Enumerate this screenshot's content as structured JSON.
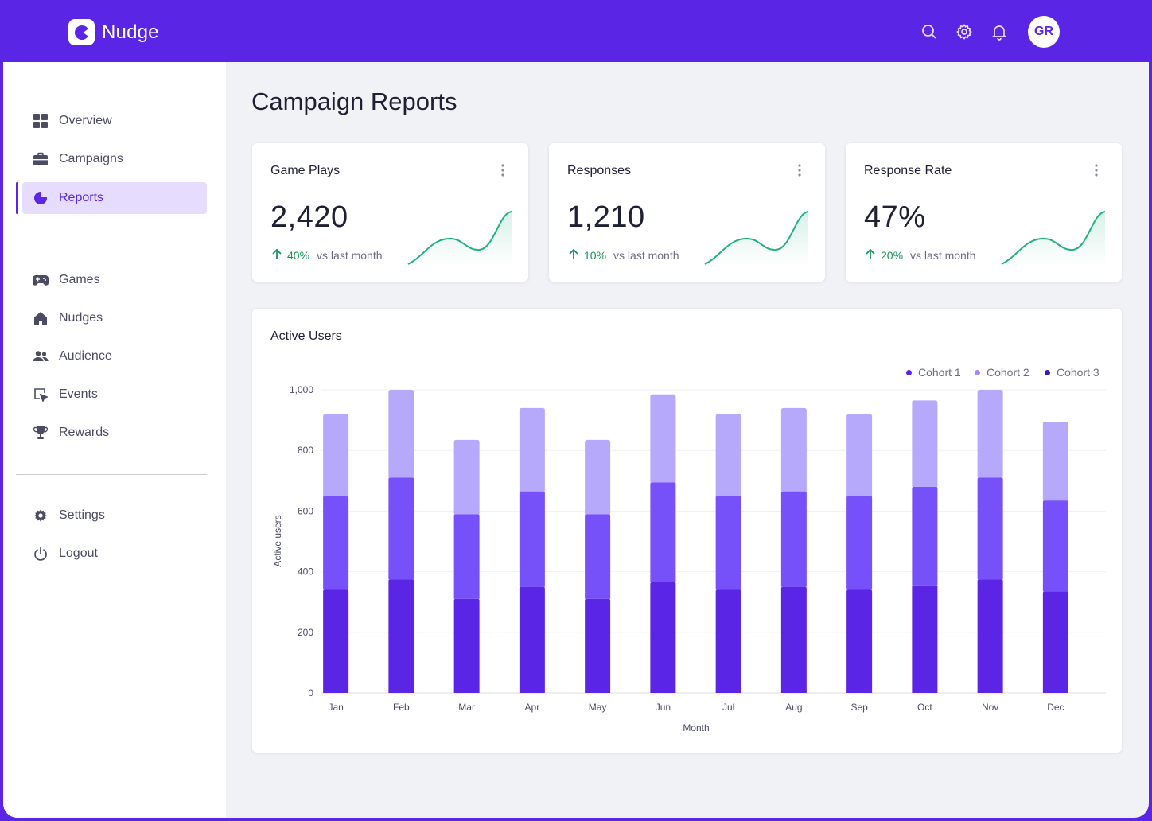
{
  "app": {
    "name": "Nudge",
    "avatar_initials": "GR"
  },
  "colors": {
    "brand": "#5b25e6",
    "positive": "#17935a",
    "sparkline": "#22b07d",
    "cohort1": "#5b25e6",
    "cohort2": "#7651fa",
    "cohort3": "#b6a8fb"
  },
  "header": {
    "icons": [
      "search-icon",
      "gear-icon",
      "bell-icon"
    ]
  },
  "sidebar": {
    "primary": [
      {
        "label": "Overview",
        "icon": "grid-icon"
      },
      {
        "label": "Campaigns",
        "icon": "briefcase-icon"
      },
      {
        "label": "Reports",
        "icon": "pie-chart-icon",
        "active": true
      }
    ],
    "secondary": [
      {
        "label": "Games",
        "icon": "gamepad-icon"
      },
      {
        "label": "Nudges",
        "icon": "home-icon"
      },
      {
        "label": "Audience",
        "icon": "users-icon"
      },
      {
        "label": "Events",
        "icon": "cursor-icon"
      },
      {
        "label": "Rewards",
        "icon": "trophy-icon"
      }
    ],
    "tertiary": [
      {
        "label": "Settings",
        "icon": "gear-icon"
      },
      {
        "label": "Logout",
        "icon": "power-icon"
      }
    ]
  },
  "page": {
    "title": "Campaign Reports"
  },
  "kpis": [
    {
      "title": "Game Plays",
      "value": "2,420",
      "change": "40%",
      "comparison": "vs last month",
      "trend": "up"
    },
    {
      "title": "Responses",
      "value": "1,210",
      "change": "10%",
      "comparison": "vs last month",
      "trend": "up"
    },
    {
      "title": "Response Rate",
      "value": "47%",
      "change": "20%",
      "comparison": "vs last month",
      "trend": "up"
    }
  ],
  "active_users": {
    "title": "Active Users"
  },
  "chart_data": {
    "type": "bar",
    "stacked": true,
    "title": "Active Users",
    "xlabel": "Month",
    "ylabel": "Active users",
    "ylim": [
      0,
      1000
    ],
    "yticks": [
      0,
      200,
      400,
      600,
      800,
      1000
    ],
    "ytick_labels": [
      "0",
      "200",
      "400",
      "600",
      "800",
      "1,000"
    ],
    "categories": [
      "Jan",
      "Feb",
      "Mar",
      "Apr",
      "May",
      "Jun",
      "Jul",
      "Aug",
      "Sep",
      "Oct",
      "Nov",
      "Dec"
    ],
    "series": [
      {
        "name": "Cohort 1",
        "values": [
          340,
          375,
          310,
          350,
          310,
          365,
          340,
          350,
          340,
          355,
          375,
          335
        ]
      },
      {
        "name": "Cohort 2",
        "values": [
          310,
          335,
          280,
          315,
          280,
          330,
          310,
          315,
          310,
          325,
          335,
          300
        ]
      },
      {
        "name": "Cohort 3",
        "values": [
          270,
          290,
          245,
          275,
          245,
          290,
          270,
          275,
          270,
          285,
          290,
          260
        ]
      }
    ],
    "grid": true,
    "legend": "top-right"
  }
}
